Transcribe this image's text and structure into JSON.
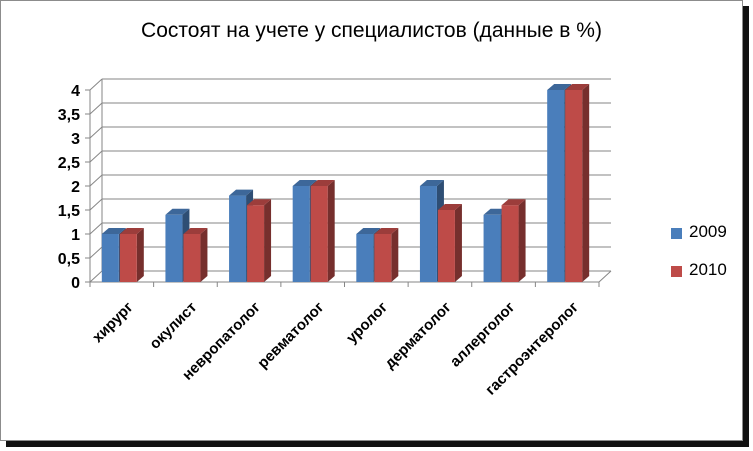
{
  "chart_data": {
    "type": "bar",
    "title": "Состоят на учете у специалистов (данные в %)",
    "categories": [
      "хирург",
      "окулист",
      "невропатолог",
      "ревматолог",
      "уролог",
      "дерматолог",
      "аллерголог",
      "гастроэнтеролог"
    ],
    "series": [
      {
        "name": "2009",
        "values": [
          1,
          1.4,
          1.8,
          2,
          1,
          2,
          1.4,
          4
        ],
        "color": "#4a7ebb"
      },
      {
        "name": "2010",
        "values": [
          1,
          1,
          1.6,
          2,
          1,
          1.5,
          1.6,
          4
        ],
        "color": "#be4b48"
      }
    ],
    "ylim": [
      0,
      4
    ],
    "yticks": [
      "0",
      "0,5",
      "1",
      "1,5",
      "2",
      "2,5",
      "3",
      "3,5",
      "4"
    ],
    "grid": true,
    "legend_position": "right",
    "style": "3d-clustered-column"
  }
}
